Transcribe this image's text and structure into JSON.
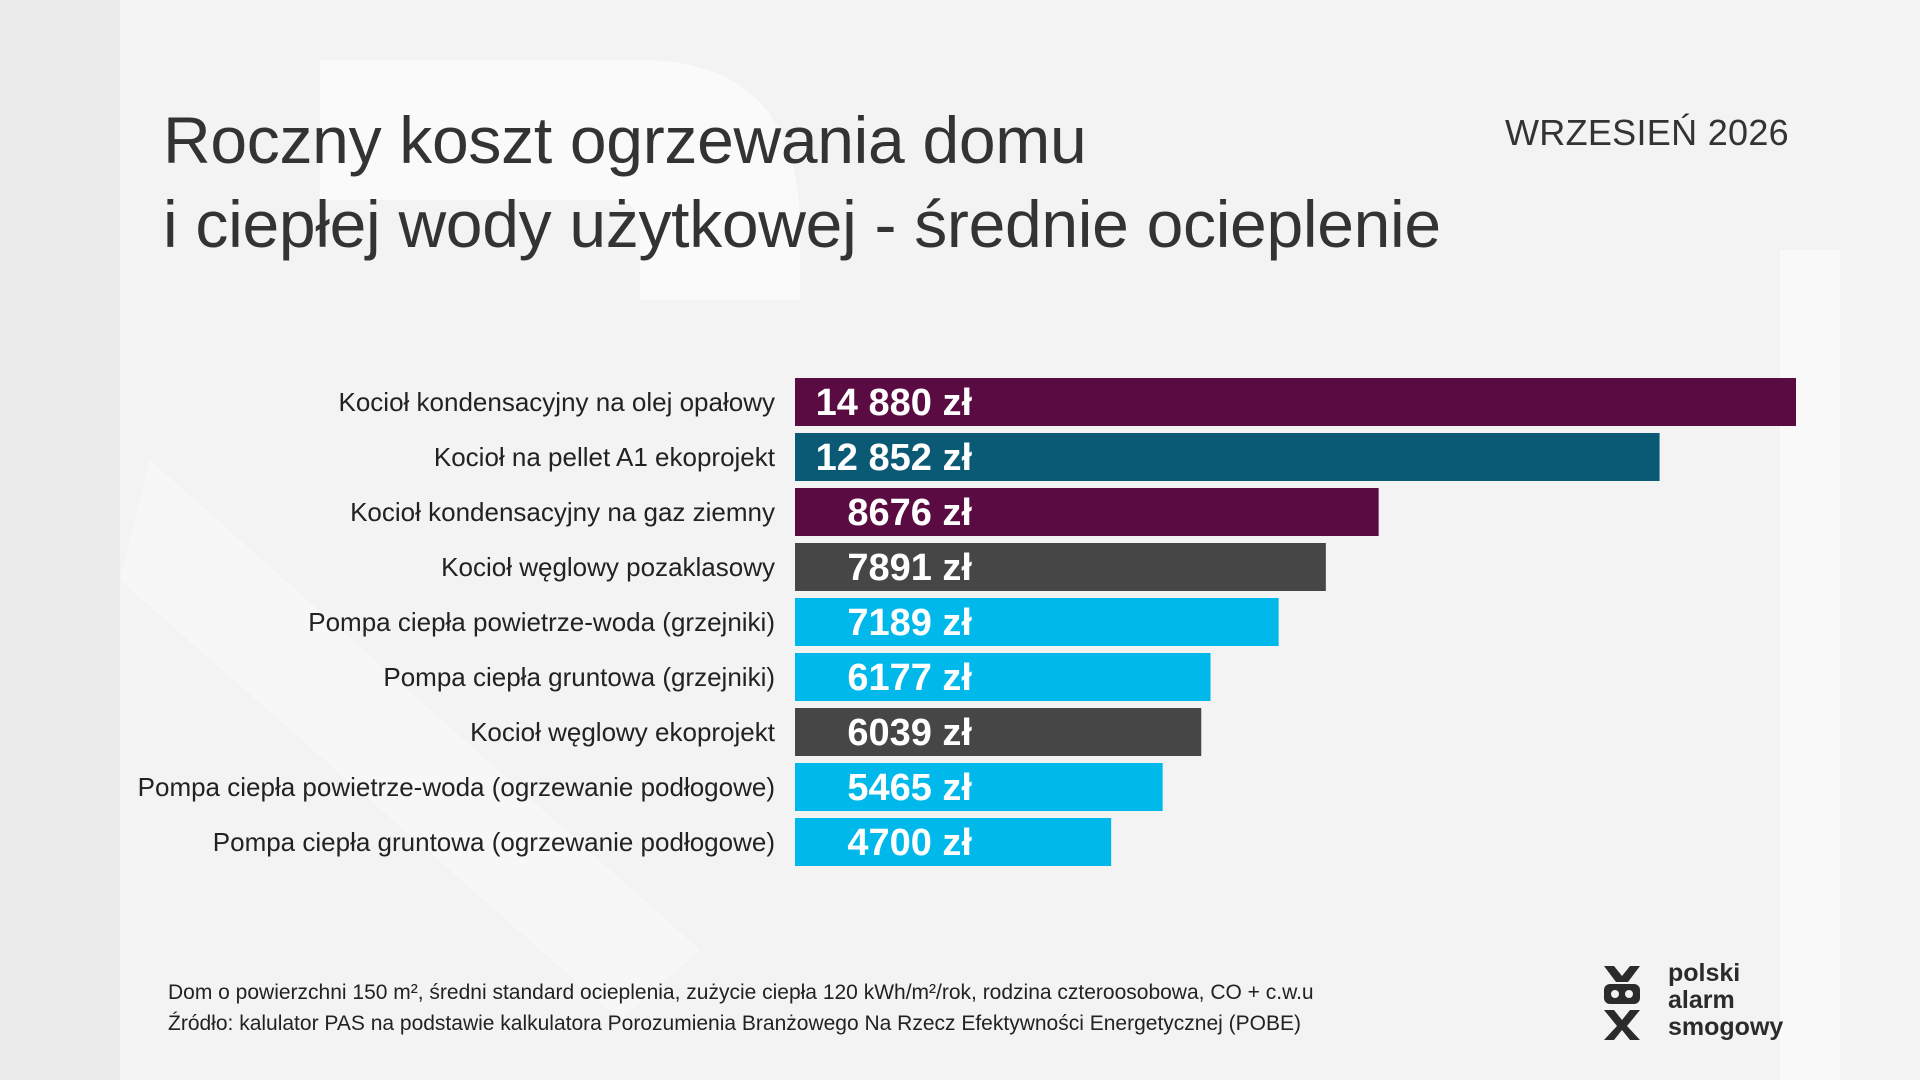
{
  "header": {
    "title_line_1": "Roczny koszt ogrzewania domu",
    "title_line_2": "i ciepłej wody użytkowej - średnie ocieplenie",
    "date": "WRZESIEŃ 2026"
  },
  "chart_data": {
    "type": "bar",
    "orientation": "horizontal",
    "categories": [
      "Kocioł kondensacyjny na olej opałowy",
      "Kocioł na pellet A1 ekoprojekt",
      "Kocioł kondensacyjny na gaz ziemny",
      "Kocioł węglowy pozaklasowy",
      "Pompa ciepła powietrze-woda (grzejniki)",
      "Pompa ciepła gruntowa (grzejniki)",
      "Kocioł węglowy ekoprojekt",
      "Pompa ciepła powietrze-woda (ogrzewanie podłogowe)",
      "Pompa ciepła gruntowa (ogrzewanie podłogowe)"
    ],
    "values": [
      14880,
      12852,
      8676,
      7891,
      7189,
      6177,
      6039,
      5465,
      4700
    ],
    "value_labels": [
      "14 880 zł",
      "12 852 zł",
      "8676 zł",
      "7891 zł",
      "7189 zł",
      "6177 zł",
      "6039 zł",
      "5465 zł",
      "4700 zł"
    ],
    "colors": [
      "#5a0b41",
      "#0b5a75",
      "#5a0b41",
      "#464646",
      "#00b9ea",
      "#00b9ea",
      "#464646",
      "#00b9ea",
      "#00b9ea"
    ],
    "xlim": [
      0,
      14880
    ],
    "grid": false,
    "legend": "none"
  },
  "footnote": {
    "line_1": "Dom o powierzchni 150 m², średni standard ocieplenia, zużycie ciepła 120 kWh/m²/rok, rodzina czteroosobowa, CO + c.w.u",
    "line_2": "Źródło: kalulator PAS na podstawie kalkulatora Porozumienia Branżowego Na Rzecz Efektywności Energetycznej (POBE)"
  },
  "brand": {
    "line_1": "polski",
    "line_2": "alarm",
    "line_3": "smogowy",
    "icon": "pas-logo-icon"
  }
}
